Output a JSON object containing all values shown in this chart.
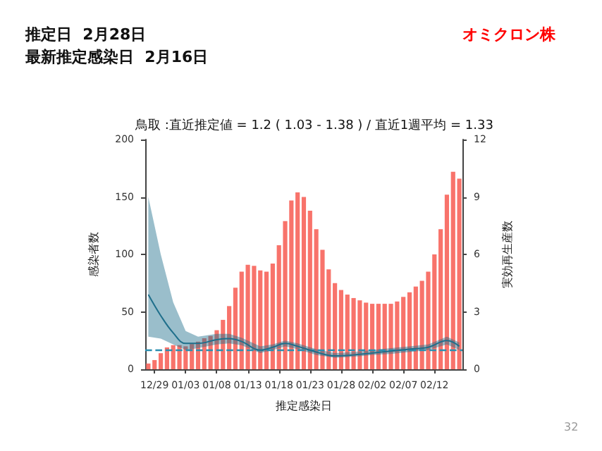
{
  "chart_data": {
    "type": "bar",
    "title": "鳥取 :直近推定値 = 1.2 ( 1.03 - 1.38 ) / 直近1週平均 = 1.33",
    "xlabel": "推定感染日",
    "ylabel": "感染者数",
    "y2label": "実効再生産数",
    "annotations": [
      "推定日  2月28日",
      "最新推定感染日  2月16日",
      "オミクロン株",
      "32"
    ],
    "categories": [
      null,
      "12/29",
      null,
      null,
      null,
      null,
      "01/03",
      null,
      null,
      null,
      null,
      "01/08",
      null,
      null,
      null,
      null,
      "01/13",
      null,
      null,
      null,
      null,
      "01/18",
      null,
      null,
      null,
      null,
      "01/23",
      null,
      null,
      null,
      null,
      "01/28",
      null,
      null,
      null,
      null,
      "02/02",
      null,
      null,
      null,
      null,
      "02/07",
      null,
      null,
      null,
      null,
      "02/12",
      null,
      null,
      null,
      null
    ],
    "series": [
      {
        "color": "#f8736b",
        "values": [
          5,
          8,
          14,
          19,
          21,
          21,
          20,
          22,
          24,
          27,
          29,
          34,
          43,
          55,
          71,
          85,
          91,
          90,
          86,
          85,
          92,
          108,
          129,
          147,
          154,
          150,
          138,
          122,
          104,
          87,
          75,
          69,
          65,
          62,
          60,
          58,
          57,
          57,
          57,
          57,
          59,
          63,
          67,
          72,
          77,
          85,
          100,
          122,
          152,
          172,
          166
        ]
      },
      {
        "type": "line",
        "axis": "y2",
        "color": "#1f6f8b",
        "values": [
          3.9,
          null,
          2.8,
          null,
          1.9,
          null,
          1.35,
          null,
          1.35,
          null,
          null,
          1.55,
          null,
          1.6,
          null,
          1.45,
          null,
          null,
          1.0,
          null,
          1.15,
          null,
          1.35,
          null,
          1.2,
          null,
          null,
          0.9,
          null,
          null,
          0.7,
          null,
          null,
          0.75,
          null,
          null,
          0.85,
          null,
          null,
          0.95,
          null,
          null,
          1.05,
          null,
          null,
          1.15,
          null,
          null,
          1.5,
          null,
          1.2
        ],
        "lower": [
          1.7,
          null,
          1.6,
          null,
          1.3,
          null,
          1.0,
          null,
          1.1,
          null,
          null,
          1.3,
          null,
          1.35,
          null,
          1.25,
          null,
          null,
          0.85,
          null,
          1.0,
          null,
          1.2,
          null,
          1.05,
          null,
          null,
          0.75,
          null,
          null,
          0.6,
          null,
          null,
          0.65,
          null,
          null,
          0.75,
          null,
          null,
          0.8,
          null,
          null,
          0.9,
          null,
          null,
          1.0,
          null,
          null,
          1.3,
          null,
          1.0
        ],
        "upper": [
          9.0,
          null,
          6.0,
          null,
          3.5,
          null,
          2.0,
          null,
          1.7,
          null,
          null,
          1.85,
          null,
          1.85,
          null,
          1.65,
          null,
          null,
          1.2,
          null,
          1.3,
          null,
          1.5,
          null,
          1.35,
          null,
          null,
          1.05,
          null,
          null,
          0.85,
          null,
          null,
          0.9,
          null,
          null,
          1.0,
          null,
          null,
          1.1,
          null,
          null,
          1.2,
          null,
          null,
          1.3,
          null,
          null,
          1.7,
          null,
          1.4
        ]
      }
    ],
    "ylim": [
      0,
      200
    ],
    "yticks": [
      0,
      50,
      100,
      150,
      200
    ],
    "y2lim": [
      0,
      12
    ],
    "y2ticks": [
      0,
      3,
      6,
      9,
      12
    ],
    "ref_lines": [
      {
        "axis": "y2",
        "value": 1,
        "color": "#2a8fb0",
        "line_style": "dashed"
      }
    ],
    "grid": false
  }
}
